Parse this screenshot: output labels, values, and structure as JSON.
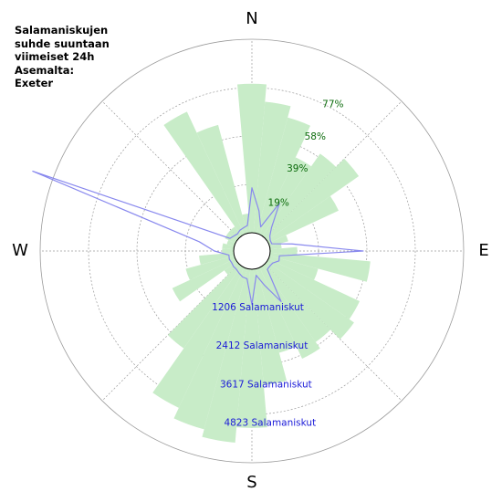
{
  "title_lines": [
    "Salamaniskujen",
    "suhde suuntaan",
    "viimeiset 24h",
    "Asemalta:",
    "Exeter"
  ],
  "compass": {
    "north": "N",
    "east": "E",
    "south": "S",
    "west": "W"
  },
  "colors": {
    "bars": "#c8ecc8",
    "count_line": "#8888ee",
    "grid": "#9a9a9a",
    "percent_text": "#0a6a0a",
    "count_text": "#1a1ad8"
  },
  "chart_data": {
    "type": "polar-bar-with-line",
    "bins": 36,
    "bin_width_deg": 10,
    "angle_start": "N",
    "angle_direction": "clockwise",
    "percent_ticks": [
      {
        "value": 19,
        "label": "19%"
      },
      {
        "value": 39,
        "label": "39%"
      },
      {
        "value": 58,
        "label": "58%"
      },
      {
        "value": 77,
        "label": "77%"
      }
    ],
    "percent_max": 100,
    "count_ticks": [
      {
        "value": 1206,
        "label": "1206 Salamaniskut"
      },
      {
        "value": 2412,
        "label": "2412 Salamaniskut"
      },
      {
        "value": 3617,
        "label": "3617 Salamaniskut"
      },
      {
        "value": 4823,
        "label": "4823 Salamaniskut"
      }
    ],
    "count_max": 6030,
    "bearing_deg": [
      0,
      10,
      20,
      30,
      40,
      50,
      60,
      70,
      80,
      90,
      100,
      110,
      120,
      130,
      140,
      150,
      160,
      170,
      180,
      190,
      200,
      210,
      220,
      230,
      240,
      250,
      260,
      270,
      280,
      290,
      300,
      310,
      320,
      330,
      340,
      350
    ],
    "percent_values": [
      77,
      68,
      62,
      44,
      52,
      58,
      40,
      10,
      6,
      14,
      52,
      26,
      52,
      55,
      48,
      52,
      45,
      60,
      82,
      90,
      86,
      80,
      52,
      8,
      36,
      26,
      18,
      6,
      6,
      4,
      6,
      6,
      6,
      70,
      58,
      10
    ],
    "count_values": [
      1400,
      700,
      230,
      1150,
      380,
      160,
      90,
      90,
      700,
      2900,
      300,
      330,
      180,
      160,
      180,
      1250,
      560,
      200,
      1100,
      310,
      290,
      230,
      180,
      180,
      160,
      180,
      160,
      600,
      1100,
      6700,
      220,
      160,
      130,
      180,
      200,
      240
    ]
  }
}
